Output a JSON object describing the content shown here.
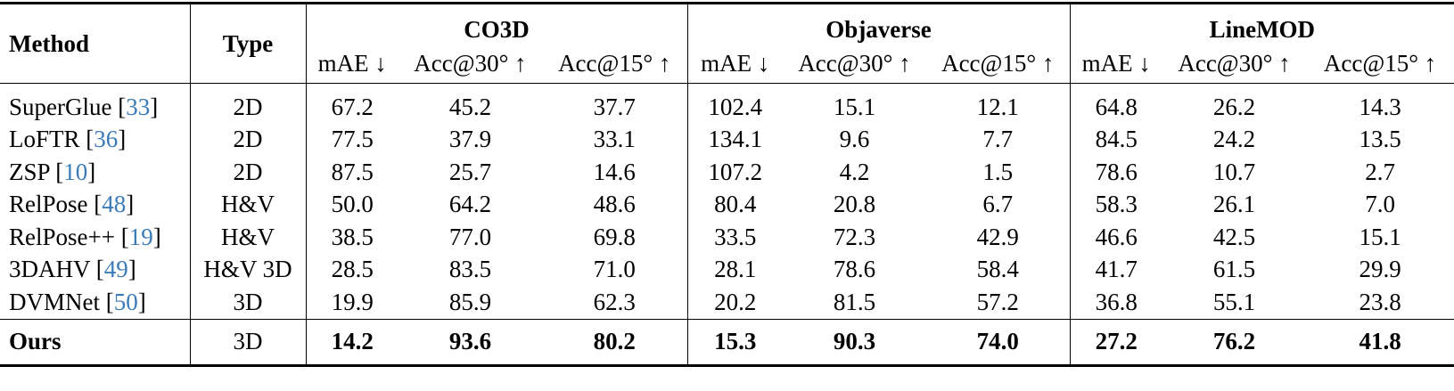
{
  "table": {
    "header": {
      "method": "Method",
      "type": "Type",
      "groups": [
        "CO3D",
        "Objaverse",
        "LineMOD"
      ],
      "metrics": [
        "mAE ↓",
        "Acc@30° ↑",
        "Acc@15° ↑"
      ]
    },
    "rows": [
      {
        "method": [
          "SuperGlue [",
          "33",
          "]"
        ],
        "type": "2D",
        "values": [
          "67.2",
          "45.2",
          "37.7",
          "102.4",
          "15.1",
          "12.1",
          "64.8",
          "26.2",
          "14.3"
        ]
      },
      {
        "method": [
          "LoFTR [",
          "36",
          "]"
        ],
        "type": "2D",
        "values": [
          "77.5",
          "37.9",
          "33.1",
          "134.1",
          "9.6",
          "7.7",
          "84.5",
          "24.2",
          "13.5"
        ]
      },
      {
        "method": [
          "ZSP [",
          "10",
          "]"
        ],
        "type": "2D",
        "values": [
          "87.5",
          "25.7",
          "14.6",
          "107.2",
          "4.2",
          "1.5",
          "78.6",
          "10.7",
          "2.7"
        ]
      },
      {
        "method": [
          "RelPose [",
          "48",
          "]"
        ],
        "type": "H&V",
        "values": [
          "50.0",
          "64.2",
          "48.6",
          "80.4",
          "20.8",
          "6.7",
          "58.3",
          "26.1",
          "7.0"
        ]
      },
      {
        "method": [
          "RelPose++ [",
          "19",
          "]"
        ],
        "type": "H&V",
        "values": [
          "38.5",
          "77.0",
          "69.8",
          "33.5",
          "72.3",
          "42.9",
          "46.6",
          "42.5",
          "15.1"
        ]
      },
      {
        "method": [
          "3DAHV [",
          "49",
          "]"
        ],
        "type": "H&V 3D",
        "values": [
          "28.5",
          "83.5",
          "71.0",
          "28.1",
          "78.6",
          "58.4",
          "41.7",
          "61.5",
          "29.9"
        ]
      },
      {
        "method": [
          "DVMNet [",
          "50",
          "]"
        ],
        "type": "3D",
        "values": [
          "19.9",
          "85.9",
          "62.3",
          "20.2",
          "81.5",
          "57.2",
          "36.8",
          "55.1",
          "23.8"
        ]
      }
    ],
    "ours": {
      "method": "Ours",
      "type": "3D",
      "values": [
        "14.2",
        "93.6",
        "80.2",
        "15.3",
        "90.3",
        "74.0",
        "27.2",
        "76.2",
        "41.8"
      ]
    }
  }
}
